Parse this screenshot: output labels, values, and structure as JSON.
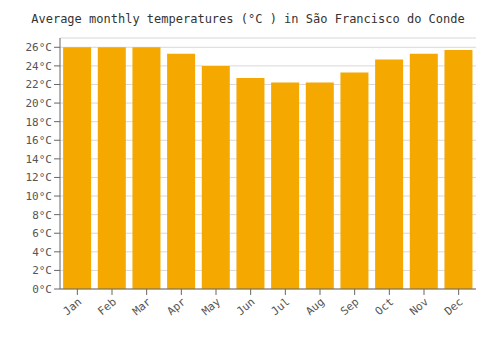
{
  "chart_data": {
    "type": "bar",
    "title": "Average monthly temperatures (°C ) in São Francisco do Conde",
    "categories": [
      "Jan",
      "Feb",
      "Mar",
      "Apr",
      "May",
      "Jun",
      "Jul",
      "Aug",
      "Sep",
      "Oct",
      "Nov",
      "Dec"
    ],
    "values": [
      26.0,
      26.0,
      26.0,
      25.3,
      24.0,
      22.7,
      22.2,
      22.2,
      23.3,
      24.7,
      25.3,
      25.7
    ],
    "color": "#F5A800",
    "ylim": [
      0,
      27
    ],
    "yticks": [
      {
        "value": 0,
        "label": "0°C"
      },
      {
        "value": 2,
        "label": "2°C"
      },
      {
        "value": 4,
        "label": "4°C"
      },
      {
        "value": 6,
        "label": "6°C"
      },
      {
        "value": 8,
        "label": "8°C"
      },
      {
        "value": 10,
        "label": "10°C"
      },
      {
        "value": 12,
        "label": "12°C"
      },
      {
        "value": 14,
        "label": "14°C"
      },
      {
        "value": 16,
        "label": "16°C"
      },
      {
        "value": 18,
        "label": "18°C"
      },
      {
        "value": 20,
        "label": "20°C"
      },
      {
        "value": 22,
        "label": "22°C"
      },
      {
        "value": 24,
        "label": "24°C"
      },
      {
        "value": 26,
        "label": "26°C"
      }
    ],
    "grid": true
  }
}
